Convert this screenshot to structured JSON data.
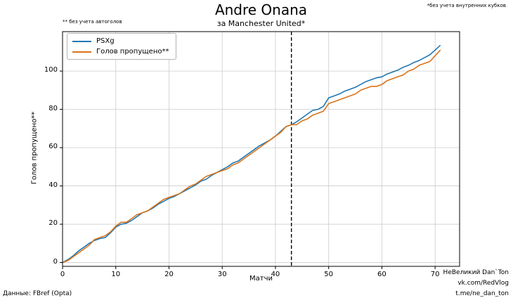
{
  "header": {
    "title": "Andre Onana",
    "subtitle": "за Manchester United*",
    "note_top_right": "*без учета внутренних кубков",
    "note_top_left": "** без учета автоголов"
  },
  "footer": {
    "source_note": "Данные: FBref (Opta)",
    "watermark_line1": "НеВеликий Dan`Ton",
    "watermark_line2": "vk.com/RedVlog",
    "watermark_line3": "t.me/ne_dan_ton"
  },
  "chart_data": {
    "type": "line",
    "title": "Andre Onana",
    "subtitle": "за Manchester United*",
    "xlabel": "Матчи",
    "ylabel": "Голов пропущено**",
    "xticks": [
      0,
      10,
      20,
      30,
      40,
      50,
      60,
      70
    ],
    "yticks": [
      0,
      20,
      40,
      60,
      80,
      100
    ],
    "xlim": [
      0,
      74.6
    ],
    "ylim": [
      -2,
      120.6
    ],
    "grid": true,
    "grid_color": "#cccccc",
    "legend_position": "upper left",
    "vline": {
      "x": 43,
      "style": "dashed",
      "color": "#000000"
    },
    "x": [
      0,
      1,
      2,
      3,
      4,
      5,
      6,
      7,
      8,
      9,
      10,
      11,
      12,
      13,
      14,
      15,
      16,
      17,
      18,
      19,
      20,
      21,
      22,
      23,
      24,
      25,
      26,
      27,
      28,
      29,
      30,
      31,
      32,
      33,
      34,
      35,
      36,
      37,
      38,
      39,
      40,
      41,
      42,
      43,
      44,
      45,
      46,
      47,
      48,
      49,
      50,
      51,
      52,
      53,
      54,
      55,
      56,
      57,
      58,
      59,
      60,
      61,
      62,
      63,
      64,
      65,
      66,
      67,
      68,
      69,
      70,
      71
    ],
    "series": [
      {
        "name": "PSXg",
        "color": "#1f77b4",
        "values": [
          0,
          1.5,
          3.5,
          6,
          8,
          10,
          11.5,
          12.5,
          13,
          15.5,
          18.5,
          20,
          20.5,
          22,
          24,
          26,
          27,
          28.5,
          30.5,
          32,
          33.5,
          34.5,
          36,
          37.5,
          39,
          40.5,
          42.5,
          43.5,
          45.5,
          47,
          48.5,
          50,
          52,
          53,
          55,
          57,
          59,
          61,
          62.5,
          64,
          66,
          68.5,
          71,
          72,
          73.5,
          75.5,
          77.5,
          79.5,
          80,
          81.5,
          86,
          87,
          88,
          89.5,
          90.5,
          91.5,
          93,
          94.5,
          95.5,
          96.5,
          97,
          98.5,
          99.5,
          100.5,
          102,
          103,
          104.5,
          105.5,
          107,
          108.5,
          111,
          113.5
        ]
      },
      {
        "name": "Голов пропущено**",
        "color": "#d9731a",
        "values": [
          0,
          1,
          3,
          5,
          7,
          9,
          12,
          13,
          14,
          16,
          19,
          21,
          21,
          23,
          25,
          26,
          27,
          29,
          31,
          33,
          34,
          35,
          36,
          38,
          40,
          41,
          43,
          45,
          46,
          47,
          48,
          49,
          51,
          52,
          54,
          56,
          58,
          60,
          62,
          64,
          66,
          68,
          71,
          72,
          72,
          74,
          75,
          77,
          78,
          79,
          83,
          84,
          85,
          86,
          87,
          88,
          90,
          91,
          92,
          92,
          93,
          95,
          96,
          97,
          98,
          100,
          101,
          103,
          104,
          105,
          108,
          111
        ]
      }
    ]
  }
}
